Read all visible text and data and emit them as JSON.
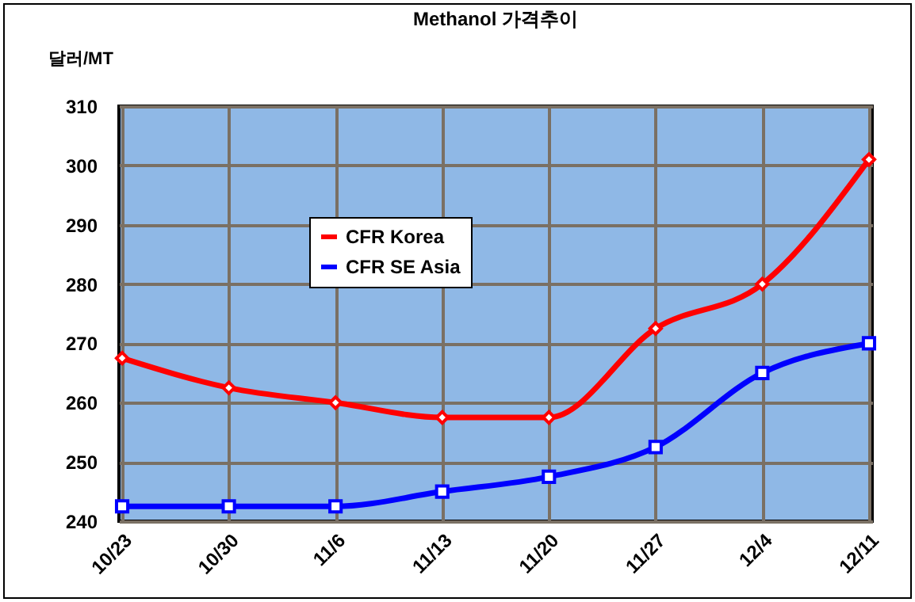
{
  "chart_data": {
    "type": "line",
    "title": "Methanol 가격추이",
    "ylabel": "달러/MT",
    "categories": [
      "10/23",
      "10/30",
      "11/6",
      "11/13",
      "11/20",
      "11/27",
      "12/4",
      "12/11"
    ],
    "series": [
      {
        "name": "CFR Korea",
        "color": "#ff0000",
        "marker": "diamond",
        "values": [
          267.5,
          262.5,
          260,
          257.5,
          257.5,
          272.5,
          280,
          301
        ]
      },
      {
        "name": "CFR SE Asia",
        "color": "#0000ff",
        "marker": "square",
        "values": [
          242.5,
          242.5,
          242.5,
          245,
          247.5,
          252.5,
          265,
          270
        ]
      }
    ],
    "ylim": [
      240,
      310
    ],
    "yticks": [
      240,
      250,
      260,
      270,
      280,
      290,
      300,
      310
    ],
    "grid": true,
    "legend": "top left"
  }
}
